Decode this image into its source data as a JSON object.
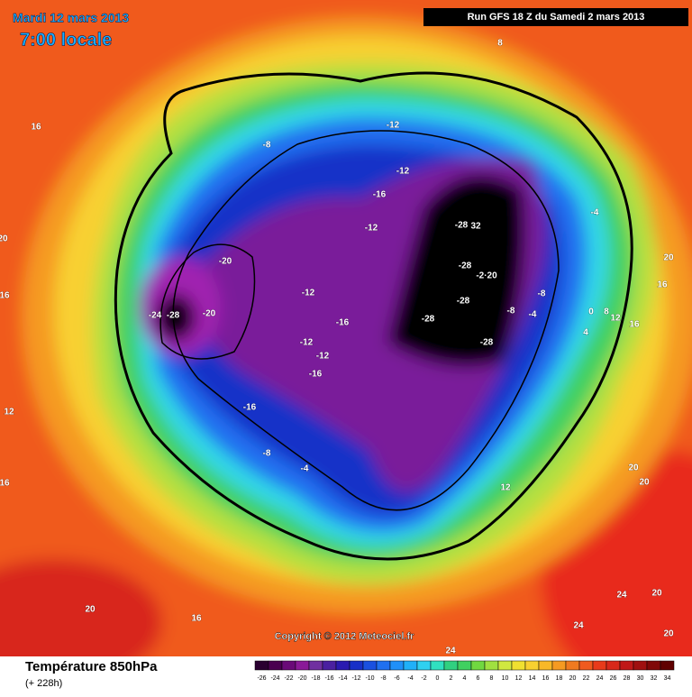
{
  "header": {
    "date": "Mardi 12 mars 2013",
    "time": "7:00 locale",
    "run": "Run GFS 18 Z du Samedi 2 mars 2013"
  },
  "map": {
    "contour_labels": [
      "-28",
      "-24",
      "-20",
      "-20",
      "-12",
      "-16",
      "-12",
      "-12",
      "-16",
      "-16",
      "-8",
      "-4",
      "-8",
      "-12",
      "-12",
      "-16",
      "-12",
      "-28",
      "32",
      "-28",
      "-28",
      "-28",
      "-28",
      "-8",
      "-8",
      "-4",
      "-4",
      "8",
      "16",
      "20",
      "16",
      "16",
      "12",
      "8",
      "0",
      "4",
      "20",
      "20",
      "12",
      "24",
      "20",
      "24",
      "20",
      "24",
      "20",
      "16",
      "12",
      "16",
      "16",
      "20",
      "-2·20"
    ]
  },
  "footer": {
    "title": "Température 850hPa",
    "lead": "(+ 228h)",
    "copyright": "Copyright © 2012 Meteociel.fr",
    "legend_ticks": [
      -26,
      -24,
      -22,
      -20,
      -18,
      -16,
      -14,
      -12,
      -10,
      -8,
      -6,
      -4,
      -2,
      0,
      2,
      4,
      6,
      8,
      10,
      12,
      14,
      16,
      18,
      20,
      22,
      24,
      26,
      28,
      30,
      32,
      34
    ]
  }
}
